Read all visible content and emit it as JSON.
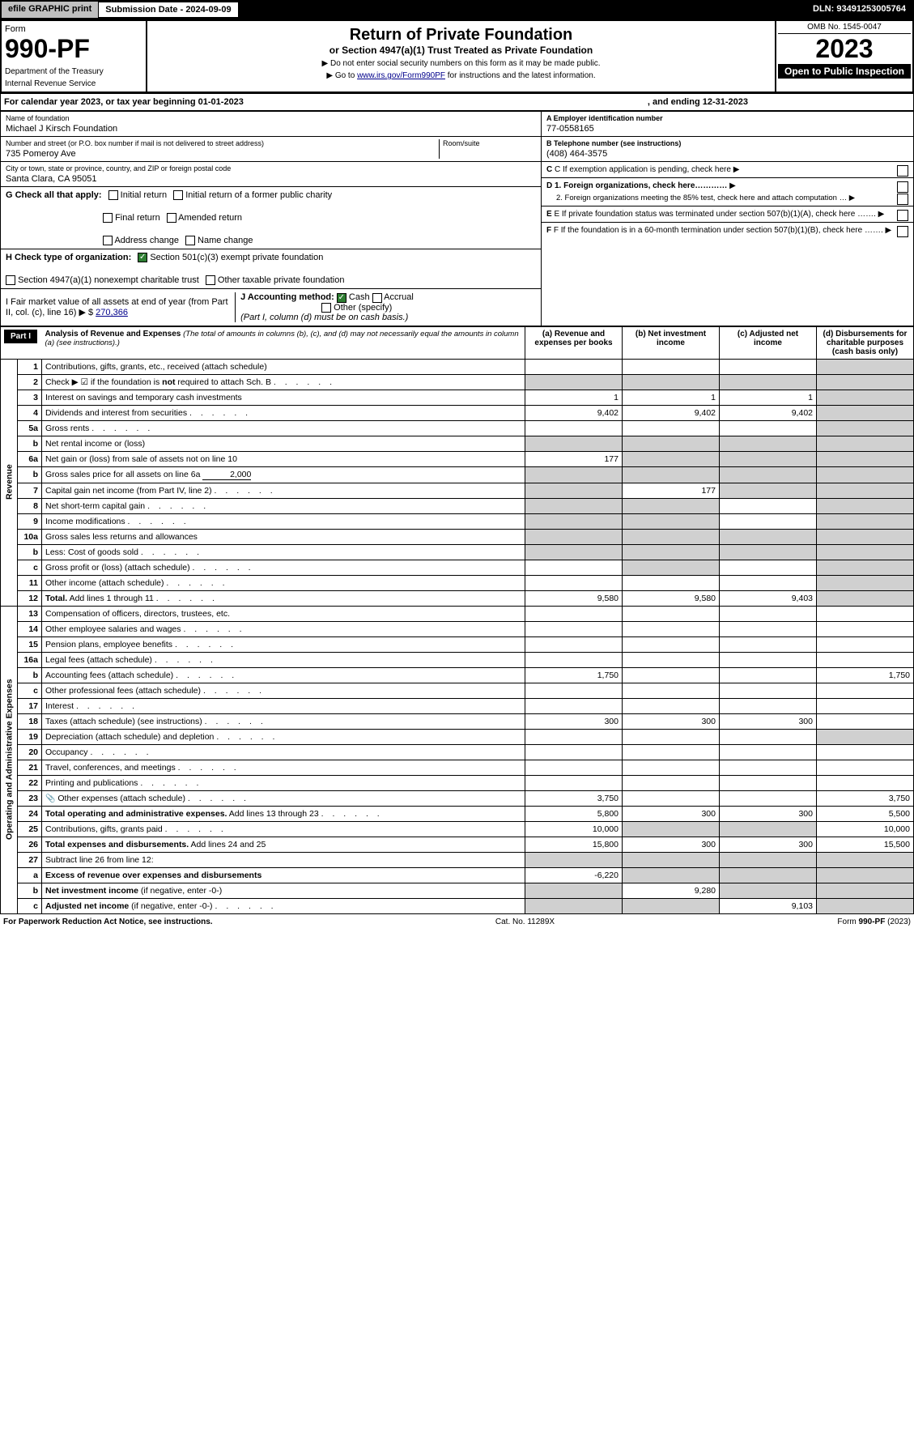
{
  "top": {
    "efile": "efile GRAPHIC print",
    "sub_label": "Submission Date - 2024-09-09",
    "dln": "DLN: 93491253005764"
  },
  "header": {
    "form_word": "Form",
    "form_no": "990-PF",
    "dept": "Department of the Treasury",
    "irs": "Internal Revenue Service",
    "title": "Return of Private Foundation",
    "subtitle": "or Section 4947(a)(1) Trust Treated as Private Foundation",
    "note1": "▶ Do not enter social security numbers on this form as it may be made public.",
    "note2_pre": "▶ Go to ",
    "note2_link": "www.irs.gov/Form990PF",
    "note2_post": " for instructions and the latest information.",
    "omb": "OMB No. 1545-0047",
    "year": "2023",
    "inspect": "Open to Public Inspection"
  },
  "cal": {
    "text_a": "For calendar year 2023, or tax year beginning 01-01-2023",
    "text_b": ", and ending 12-31-2023"
  },
  "name": {
    "lab": "Name of foundation",
    "val": "Michael J Kirsch Foundation"
  },
  "ein": {
    "lab": "A Employer identification number",
    "val": "77-0558165"
  },
  "addr": {
    "lab": "Number and street (or P.O. box number if mail is not delivered to street address)",
    "val": "735 Pomeroy Ave",
    "room_lab": "Room/suite"
  },
  "phone": {
    "lab": "B Telephone number (see instructions)",
    "val": "(408) 464-3575"
  },
  "city": {
    "lab": "City or town, state or province, country, and ZIP or foreign postal code",
    "val": "Santa Clara, CA  95051"
  },
  "C": "C If exemption application is pending, check here",
  "G": {
    "lab": "G Check all that apply:",
    "opts": [
      "Initial return",
      "Final return",
      "Address change",
      "Initial return of a former public charity",
      "Amended return",
      "Name change"
    ]
  },
  "D": {
    "d1": "D 1. Foreign organizations, check here…………",
    "d2": "2. Foreign organizations meeting the 85% test, check here and attach computation … ▶"
  },
  "H": {
    "lab": "H Check type of organization:",
    "o1": "Section 501(c)(3) exempt private foundation",
    "o2": "Section 4947(a)(1) nonexempt charitable trust",
    "o3": "Other taxable private foundation"
  },
  "E": "E If private foundation status was terminated under section 507(b)(1)(A), check here …….",
  "I": {
    "lab": "I Fair market value of all assets at end of year (from Part II, col. (c), line 16) ▶ $",
    "val": "270,366"
  },
  "J": {
    "lab": "J Accounting method:",
    "cash": "Cash",
    "accrual": "Accrual",
    "other": "Other (specify)",
    "note": "(Part I, column (d) must be on cash basis.)"
  },
  "F": "F If the foundation is in a 60-month termination under section 507(b)(1)(B), check here …….",
  "part1": {
    "hdr": "Part I",
    "title": "Analysis of Revenue and Expenses",
    "sub": "(The total of amounts in columns (b), (c), and (d) may not necessarily equal the amounts in column (a) (see instructions).)",
    "cols": {
      "a": "(a)   Revenue and expenses per books",
      "b": "(b)   Net investment income",
      "c": "(c)   Adjusted net income",
      "d": "(d)   Disbursements for charitable purposes (cash basis only)"
    }
  },
  "sections": {
    "rev": "Revenue",
    "ope": "Operating and Administrative Expenses"
  },
  "rows": [
    {
      "n": "1",
      "d": "Contributions, gifts, grants, etc., received (attach schedule)",
      "a": "",
      "b": "",
      "c": "",
      "dd": "",
      "sh": [
        "d"
      ]
    },
    {
      "n": "2",
      "d": "Check ▶ ☑ if the foundation is <b>not</b> required to attach Sch. B",
      "dots": true,
      "shAll": true
    },
    {
      "n": "3",
      "d": "Interest on savings and temporary cash investments",
      "a": "1",
      "b": "1",
      "c": "1",
      "dd": "",
      "sh": [
        "d"
      ]
    },
    {
      "n": "4",
      "d": "Dividends and interest from securities",
      "dots": true,
      "a": "9,402",
      "b": "9,402",
      "c": "9,402",
      "dd": "",
      "sh": [
        "d"
      ]
    },
    {
      "n": "5a",
      "d": "Gross rents",
      "dots": true,
      "sh": [
        "d"
      ]
    },
    {
      "n": "b",
      "d": "Net rental income or (loss)",
      "inset": true,
      "shAll": true
    },
    {
      "n": "6a",
      "d": "Net gain or (loss) from sale of assets not on line 10",
      "a": "177",
      "sh": [
        "b",
        "c",
        "d"
      ]
    },
    {
      "n": "b",
      "d": "Gross sales price for all assets on line 6a",
      "inset": true,
      "inlineVal": "2,000",
      "shAll": true
    },
    {
      "n": "7",
      "d": "Capital gain net income (from Part IV, line 2)",
      "dots": true,
      "b": "177",
      "sh": [
        "a",
        "c",
        "d"
      ]
    },
    {
      "n": "8",
      "d": "Net short-term capital gain",
      "dots": true,
      "sh": [
        "a",
        "b",
        "d"
      ]
    },
    {
      "n": "9",
      "d": "Income modifications",
      "dots": true,
      "sh": [
        "a",
        "b",
        "d"
      ]
    },
    {
      "n": "10a",
      "d": "Gross sales less returns and allowances",
      "inset": true,
      "shAll": true
    },
    {
      "n": "b",
      "d": "Less: Cost of goods sold",
      "dots": true,
      "inset": true,
      "shAll": true
    },
    {
      "n": "c",
      "d": "Gross profit or (loss) (attach schedule)",
      "dots": true,
      "sh": [
        "b",
        "d"
      ]
    },
    {
      "n": "11",
      "d": "Other income (attach schedule)",
      "dots": true,
      "sh": [
        "d"
      ]
    },
    {
      "n": "12",
      "d": "<b>Total.</b> Add lines 1 through 11",
      "dots": true,
      "a": "9,580",
      "b": "9,580",
      "c": "9,403",
      "sh": [
        "d"
      ]
    }
  ],
  "exp_rows": [
    {
      "n": "13",
      "d": "Compensation of officers, directors, trustees, etc."
    },
    {
      "n": "14",
      "d": "Other employee salaries and wages",
      "dots": true
    },
    {
      "n": "15",
      "d": "Pension plans, employee benefits",
      "dots": true
    },
    {
      "n": "16a",
      "d": "Legal fees (attach schedule)",
      "dots": true
    },
    {
      "n": "b",
      "d": "Accounting fees (attach schedule)",
      "dots": true,
      "a": "1,750",
      "dd": "1,750"
    },
    {
      "n": "c",
      "d": "Other professional fees (attach schedule)",
      "dots": true
    },
    {
      "n": "17",
      "d": "Interest",
      "dots": true
    },
    {
      "n": "18",
      "d": "Taxes (attach schedule) (see instructions)",
      "dots": true,
      "a": "300",
      "b": "300",
      "c": "300"
    },
    {
      "n": "19",
      "d": "Depreciation (attach schedule) and depletion",
      "dots": true,
      "sh": [
        "d"
      ]
    },
    {
      "n": "20",
      "d": "Occupancy",
      "dots": true
    },
    {
      "n": "21",
      "d": "Travel, conferences, and meetings",
      "dots": true
    },
    {
      "n": "22",
      "d": "Printing and publications",
      "dots": true
    },
    {
      "n": "23",
      "d": "Other expenses (attach schedule)",
      "dots": true,
      "icon": true,
      "a": "3,750",
      "dd": "3,750"
    },
    {
      "n": "24",
      "d": "<b>Total operating and administrative expenses.</b> Add lines 13 through 23",
      "dots": true,
      "a": "5,800",
      "b": "300",
      "c": "300",
      "dd": "5,500"
    },
    {
      "n": "25",
      "d": "Contributions, gifts, grants paid",
      "dots": true,
      "a": "10,000",
      "dd": "10,000",
      "sh": [
        "b",
        "c"
      ]
    },
    {
      "n": "26",
      "d": "<b>Total expenses and disbursements.</b> Add lines 24 and 25",
      "a": "15,800",
      "b": "300",
      "c": "300",
      "dd": "15,500"
    },
    {
      "n": "27",
      "d": "Subtract line 26 from line 12:",
      "shAll": true
    },
    {
      "n": "a",
      "d": "<b>Excess of revenue over expenses and disbursements</b>",
      "a": "-6,220",
      "sh": [
        "b",
        "c",
        "d"
      ]
    },
    {
      "n": "b",
      "d": "<b>Net investment income</b> (if negative, enter -0-)",
      "b": "9,280",
      "sh": [
        "a",
        "c",
        "d"
      ]
    },
    {
      "n": "c",
      "d": "<b>Adjusted net income</b> (if negative, enter -0-)",
      "dots": true,
      "c": "9,103",
      "sh": [
        "a",
        "b",
        "d"
      ]
    }
  ],
  "footer": {
    "left": "For Paperwork Reduction Act Notice, see instructions.",
    "mid": "Cat. No. 11289X",
    "right": "Form 990-PF (2023)"
  }
}
